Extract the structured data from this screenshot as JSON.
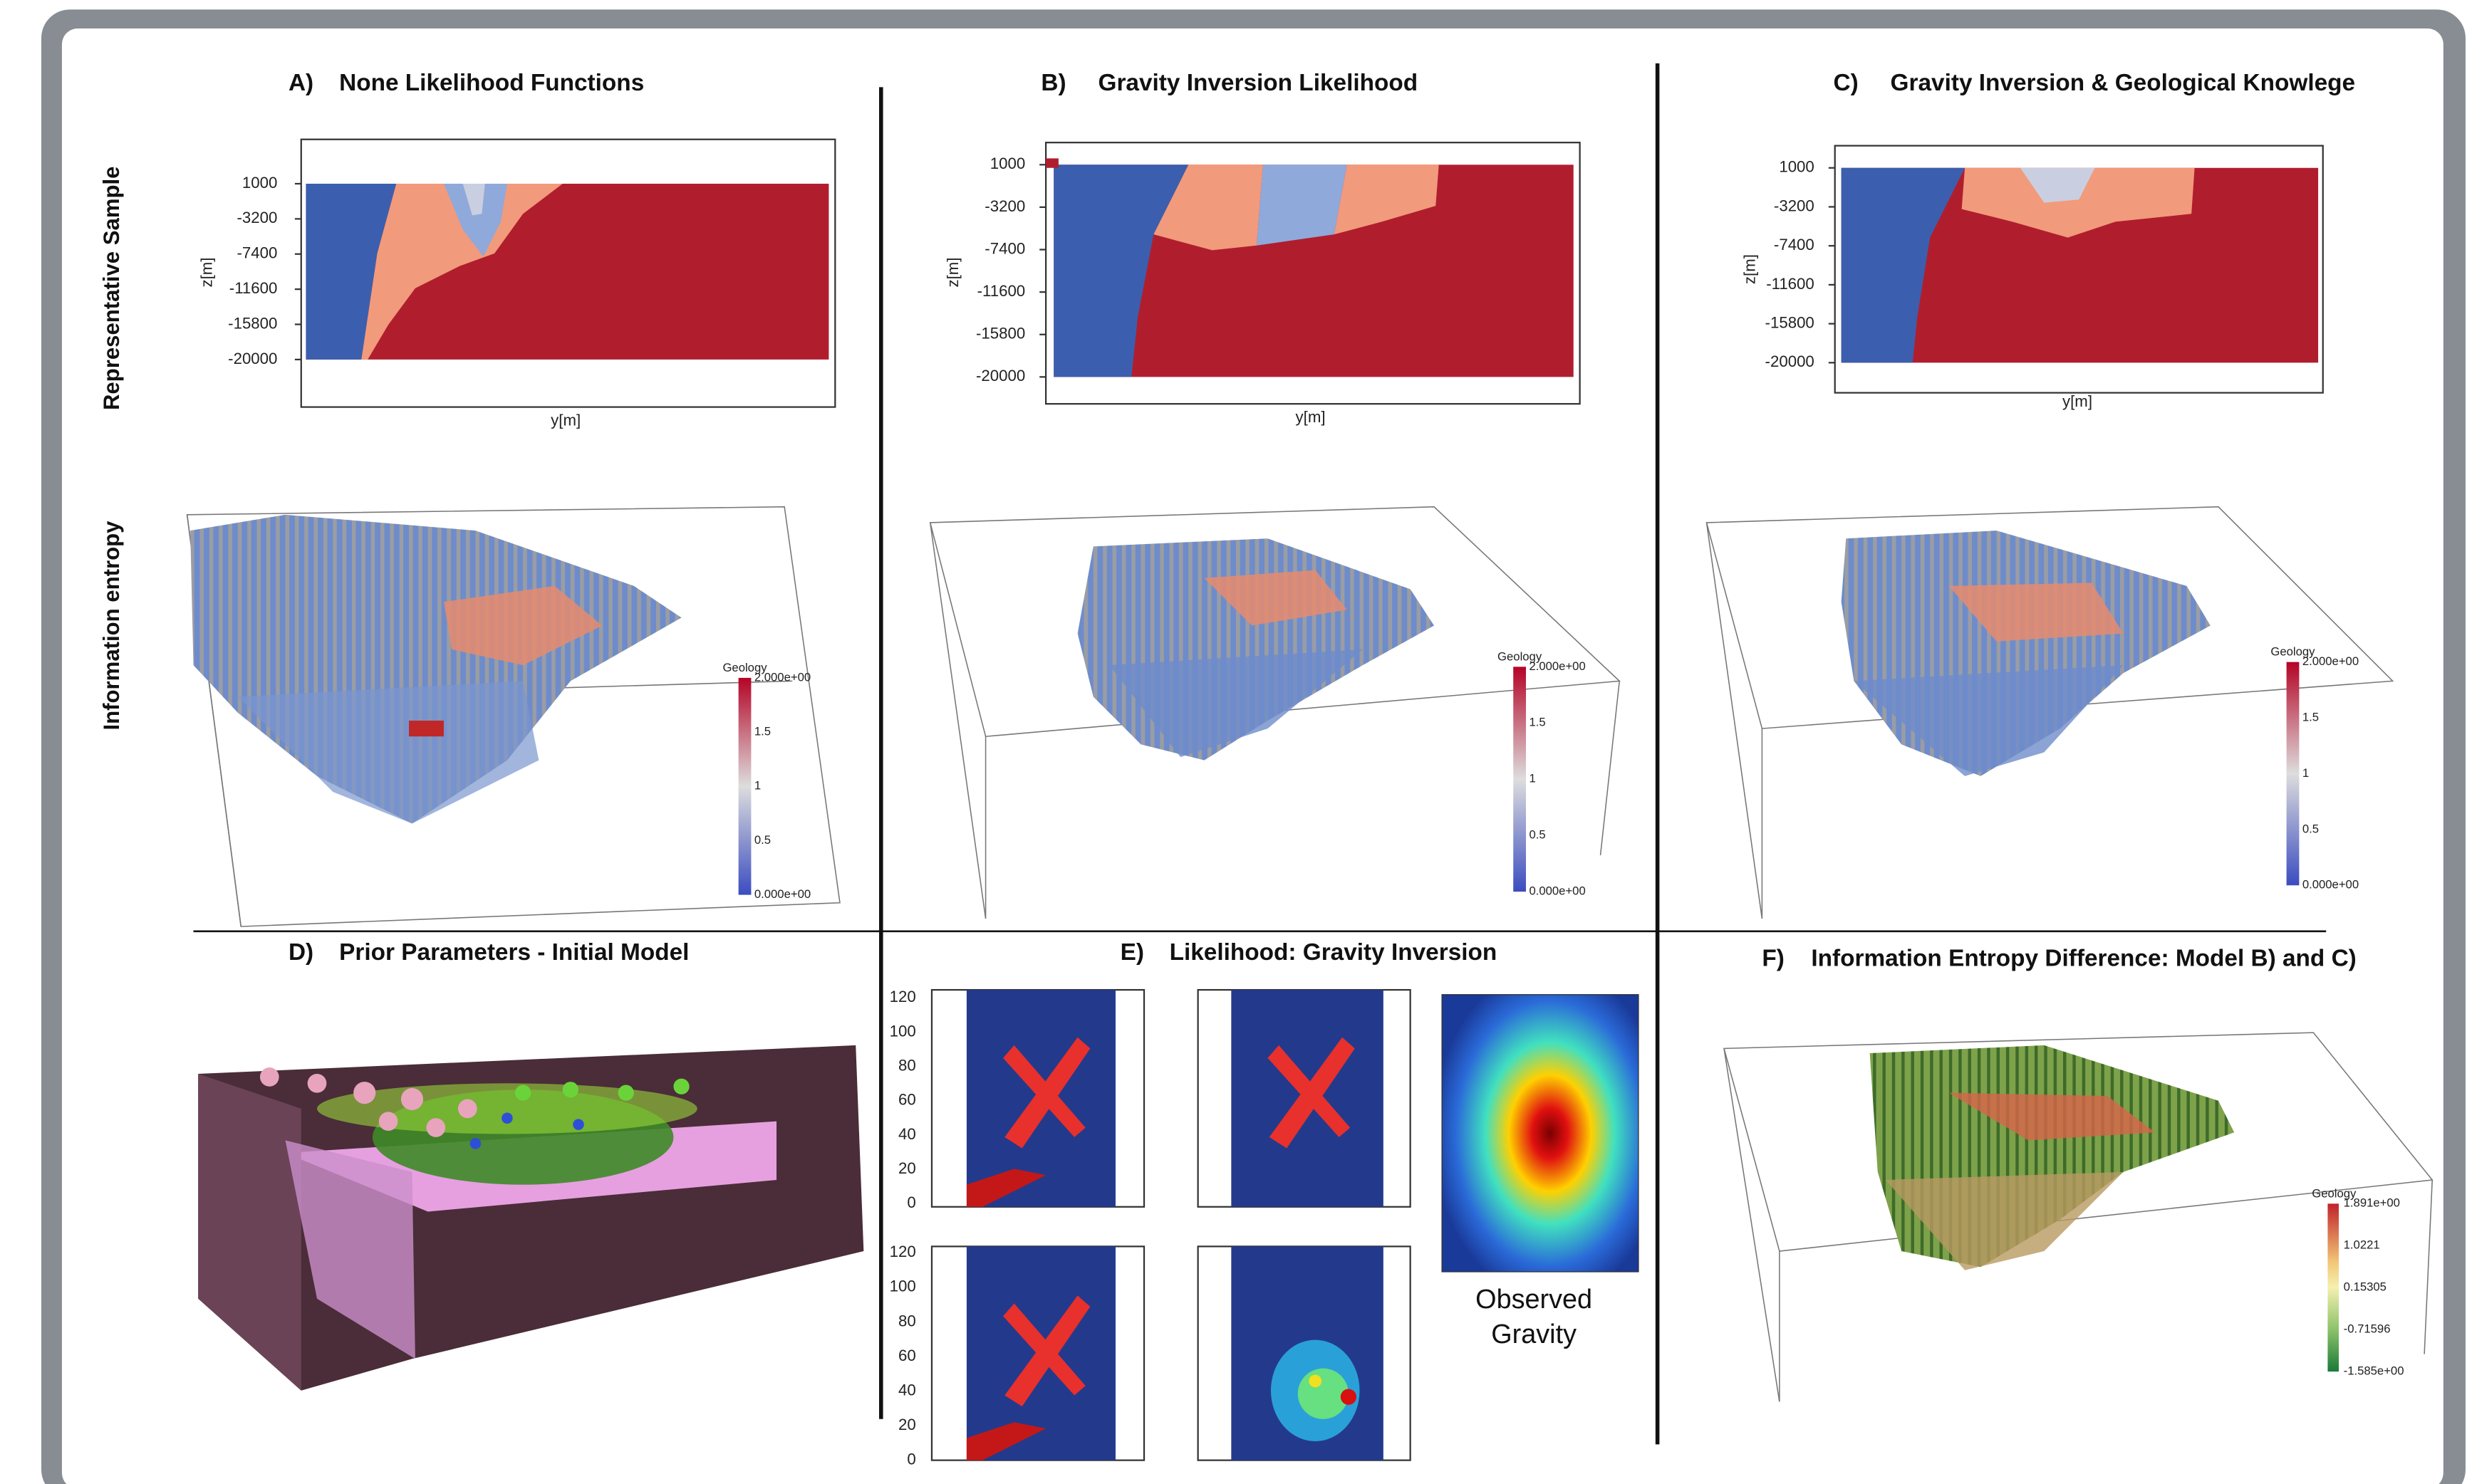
{
  "row_labels": [
    "Representative Sample",
    "Information entropy"
  ],
  "panels": [
    {
      "letter": "A)",
      "title": "None Likelihood Functions",
      "y_label": "z[m]",
      "x_label": "y[m]",
      "y_ticks": [
        "1000",
        "-3200",
        "-7400",
        "-11600",
        "-15800",
        "-20000"
      ],
      "colorbar": {
        "title": "Geology",
        "labels": [
          "2.000e+00",
          "1.5",
          "1",
          "0.5",
          "0.000e+00"
        ]
      }
    },
    {
      "letter": "B)",
      "title": "Gravity Inversion Likelihood",
      "y_label": "z[m]",
      "x_label": "y[m]",
      "y_ticks": [
        "1000",
        "-3200",
        "-7400",
        "-11600",
        "-15800",
        "-20000"
      ],
      "colorbar": {
        "title": "Geology",
        "labels": [
          "2.000e+00",
          "1.5",
          "1",
          "0.5",
          "0.000e+00"
        ]
      }
    },
    {
      "letter": "C)",
      "title": "Gravity Inversion & Geological Knowlege",
      "y_label": "z[m]",
      "x_label": "y[m]",
      "y_ticks": [
        "1000",
        "-3200",
        "-7400",
        "-11600",
        "-15800",
        "-20000"
      ],
      "colorbar": {
        "title": "Geology",
        "labels": [
          "2.000e+00",
          "1.5",
          "1",
          "0.5",
          "0.000e+00"
        ]
      }
    },
    {
      "letter": "D)",
      "title": "Prior Parameters - Initial Model"
    },
    {
      "letter": "E)",
      "title": "Likelihood: Gravity Inversion",
      "y_ticks": [
        "120",
        "100",
        "80",
        "60",
        "40",
        "20",
        "0"
      ],
      "observed_label": [
        "Observed",
        "Gravity"
      ]
    },
    {
      "letter": "F)",
      "title": "Information Entropy Difference: Model B) and C)",
      "colorbar": {
        "title": "Geology",
        "labels": [
          "1.891e+00",
          "1.0221",
          "0.15305",
          "-0.71596",
          "-1.585e+00"
        ]
      }
    }
  ]
}
